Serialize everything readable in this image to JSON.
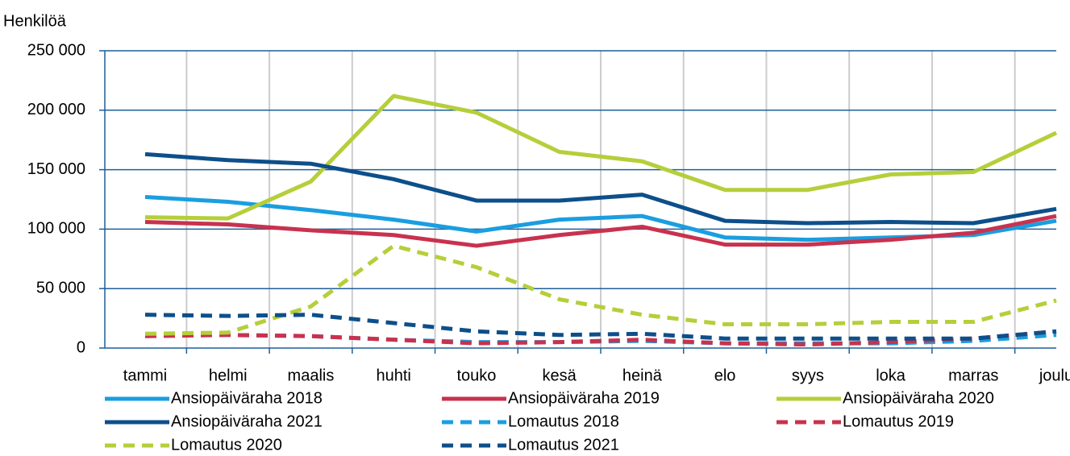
{
  "chart_data": {
    "type": "line",
    "y_axis_label": "Henkilöä",
    "categories": [
      "tammi",
      "helmi",
      "maalis",
      "huhti",
      "touko",
      "kesä",
      "heinä",
      "elo",
      "syys",
      "loka",
      "marras",
      "joulu"
    ],
    "ylim": [
      0,
      250000
    ],
    "yticks": [
      {
        "value": 0,
        "label": "0"
      },
      {
        "value": 50000,
        "label": "50 000"
      },
      {
        "value": 100000,
        "label": "100 000"
      },
      {
        "value": 150000,
        "label": "150 000"
      },
      {
        "value": 200000,
        "label": "200 000"
      },
      {
        "value": 250000,
        "label": "250 000"
      }
    ],
    "grid": true,
    "legend": "bottom",
    "series": [
      {
        "name": "Ansiopäiväraha 2018",
        "color": "#1a9ee0",
        "dashed": false,
        "values": [
          127000,
          123000,
          116000,
          108000,
          98000,
          108000,
          111000,
          93000,
          91000,
          93000,
          95000,
          107000
        ]
      },
      {
        "name": "Ansiopäiväraha 2019",
        "color": "#c8324e",
        "dashed": false,
        "values": [
          106000,
          104000,
          99000,
          95000,
          86000,
          95000,
          102000,
          87000,
          87000,
          91000,
          97000,
          111000
        ]
      },
      {
        "name": "Ansiopäiväraha 2020",
        "color": "#b5cf3a",
        "dashed": false,
        "values": [
          110000,
          109000,
          140000,
          212000,
          198000,
          165000,
          157000,
          133000,
          133000,
          146000,
          148000,
          181000
        ]
      },
      {
        "name": "Ansiopäiväraha 2021",
        "color": "#0d4f8a",
        "dashed": false,
        "values": [
          163000,
          158000,
          155000,
          142000,
          124000,
          124000,
          129000,
          107000,
          105000,
          106000,
          105000,
          117000
        ]
      },
      {
        "name": "Lomautus 2018",
        "color": "#1a9ee0",
        "dashed": true,
        "values": [
          11000,
          11000,
          10000,
          7000,
          5000,
          5000,
          6000,
          4000,
          4000,
          4000,
          6000,
          11000
        ]
      },
      {
        "name": "Lomautus 2019",
        "color": "#c8324e",
        "dashed": true,
        "values": [
          10000,
          11000,
          10000,
          7000,
          4000,
          5000,
          7000,
          4000,
          3000,
          5000,
          8000,
          14000
        ]
      },
      {
        "name": "Lomautus 2020",
        "color": "#b5cf3a",
        "dashed": true,
        "values": [
          12000,
          13000,
          35000,
          86000,
          68000,
          41000,
          28000,
          20000,
          20000,
          22000,
          22000,
          40000
        ]
      },
      {
        "name": "Lomautus 2021",
        "color": "#0d4f8a",
        "dashed": true,
        "values": [
          28000,
          27000,
          28000,
          21000,
          14000,
          11000,
          12000,
          8000,
          8000,
          8000,
          8000,
          14000
        ]
      }
    ]
  }
}
